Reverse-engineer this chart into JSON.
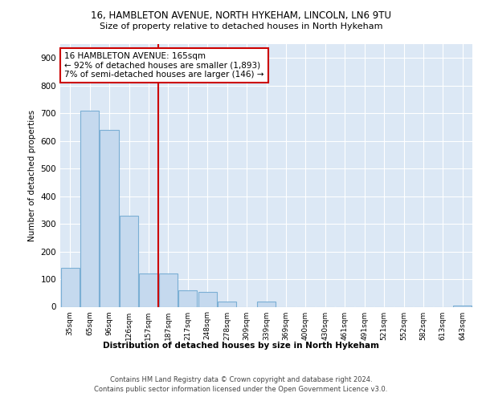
{
  "title_line1": "16, HAMBLETON AVENUE, NORTH HYKEHAM, LINCOLN, LN6 9TU",
  "title_line2": "Size of property relative to detached houses in North Hykeham",
  "xlabel": "Distribution of detached houses by size in North Hykeham",
  "ylabel": "Number of detached properties",
  "categories": [
    "35sqm",
    "65sqm",
    "96sqm",
    "126sqm",
    "157sqm",
    "187sqm",
    "217sqm",
    "248sqm",
    "278sqm",
    "309sqm",
    "339sqm",
    "369sqm",
    "400sqm",
    "430sqm",
    "461sqm",
    "491sqm",
    "521sqm",
    "552sqm",
    "582sqm",
    "613sqm",
    "643sqm"
  ],
  "values": [
    140,
    710,
    640,
    330,
    120,
    120,
    60,
    55,
    20,
    0,
    20,
    0,
    0,
    0,
    0,
    0,
    0,
    0,
    0,
    0,
    5
  ],
  "bar_color": "#c5d9ee",
  "bar_edge_color": "#7bafd4",
  "vline_x": 4.5,
  "vline_color": "#cc0000",
  "annotation_text": "16 HAMBLETON AVENUE: 165sqm\n← 92% of detached houses are smaller (1,893)\n7% of semi-detached houses are larger (146) →",
  "annotation_box_color": "#ffffff",
  "annotation_box_edge": "#cc0000",
  "footer_line1": "Contains HM Land Registry data © Crown copyright and database right 2024.",
  "footer_line2": "Contains public sector information licensed under the Open Government Licence v3.0.",
  "ylim": [
    0,
    950
  ],
  "yticks": [
    0,
    100,
    200,
    300,
    400,
    500,
    600,
    700,
    800,
    900
  ],
  "bg_color": "#dce8f5",
  "fig_bg_color": "#ffffff"
}
